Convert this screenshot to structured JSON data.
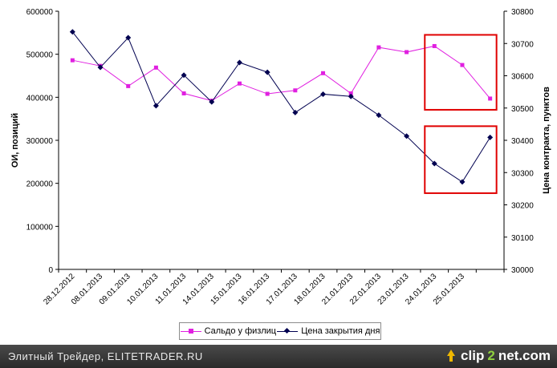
{
  "chart_data": {
    "type": "line",
    "categories": [
      "28.12.2012",
      "08.01.2013",
      "09.01.2013",
      "10.01.2013",
      "11.01.2013",
      "14.01.2013",
      "15.01.2013",
      "16.01.2013",
      "17.01.2013",
      "18.01.2013",
      "21.01.2013",
      "22.01.2013",
      "23.01.2013",
      "24.01.2013",
      "25.01.2013",
      ""
    ],
    "y_left": {
      "label": "ОИ, позиций",
      "range": [
        0,
        600000
      ],
      "ticks": [
        0,
        100000,
        200000,
        300000,
        400000,
        500000,
        600000
      ]
    },
    "y_right": {
      "label": "Цена контракта, пунктов",
      "range": [
        30000,
        30800
      ],
      "ticks": [
        30000,
        30100,
        30200,
        30300,
        30400,
        30500,
        30600,
        30700,
        30800
      ]
    },
    "series": [
      {
        "name": "Сальдо у физлиц",
        "color": "#e020e0",
        "marker": "square",
        "axis": "left",
        "values": [
          486000,
          473000,
          426000,
          469000,
          409000,
          392000,
          432000,
          408000,
          416000,
          456000,
          409000,
          516000,
          505000,
          519000,
          475000,
          397000
        ]
      },
      {
        "name": "Цена закрытия дня",
        "color": "#000050",
        "marker": "diamond",
        "axis": "right",
        "values": [
          30736,
          30626,
          30718,
          30507,
          30602,
          30519,
          30641,
          30611,
          30486,
          30543,
          30536,
          30478,
          30413,
          30328,
          30271,
          30409
        ]
      }
    ],
    "annotations": [
      {
        "type": "red-box",
        "series": "Сальдо у физлиц",
        "from_index": 13,
        "to_index": 15,
        "color": "#e00000"
      },
      {
        "type": "red-box",
        "series": "Цена закрытия дня",
        "from_index": 13,
        "to_index": 15,
        "color": "#e00000"
      }
    ],
    "grid": false,
    "legend_position": "bottom"
  },
  "legend": {
    "series1": "Сальдо у физлиц",
    "series2": "Цена закрытия дня"
  },
  "footer": {
    "text": "Элитный Трейдер, ELITETRADER.RU",
    "brand_a": "clip",
    "brand_b": "2",
    "brand_c": "net.com"
  }
}
